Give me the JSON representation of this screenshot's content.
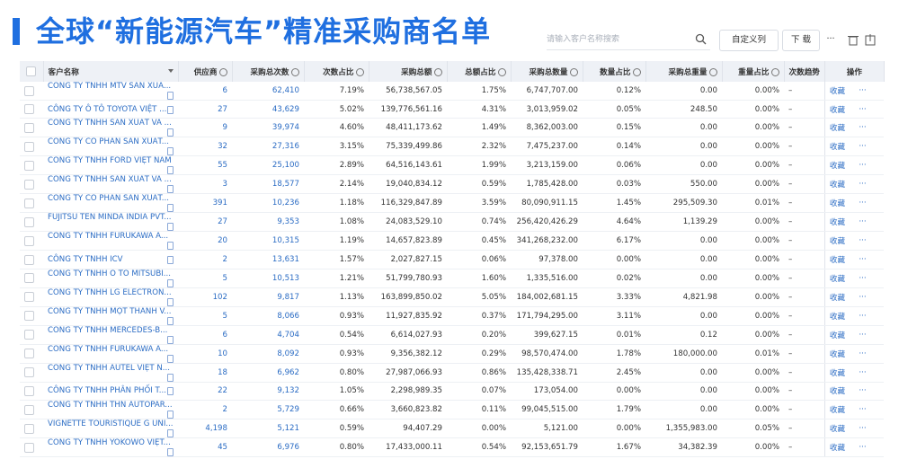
{
  "header": {
    "title": "全球“新能源汽车”精准采购商名单"
  },
  "toolbar": {
    "search_placeholder": "请输入客户名称搜索",
    "buttons": [
      "自定义列",
      "下 载",
      "···"
    ]
  },
  "table": {
    "columns": [
      "客户名称",
      "供应商",
      "采购总次数",
      "次数占比",
      "采购总额",
      "总额占比",
      "采购总数量",
      "数量占比",
      "采购总重量",
      "重量占比",
      "次数趋势",
      "操作"
    ],
    "rows": [
      [
        "CÔNG TY TNHH MTV SẢN XUẤ...",
        "6",
        "62,410",
        "7.19%",
        "56,738,567.05",
        "1.75%",
        "6,747,707.00",
        "0.12%",
        "0.00",
        "0.00%",
        "–",
        "收藏",
        "···"
      ],
      [
        "CÔNG TY Ô TÔ TOYOTA VIỆT ...",
        "27",
        "43,629",
        "5.02%",
        "139,776,561.16",
        "4.31%",
        "3,013,959.02",
        "0.05%",
        "248.50",
        "0.00%",
        "–",
        "收藏",
        "···"
      ],
      [
        "CÔNG TY TNHH SẢN XUẤT VÀ ...",
        "9",
        "39,974",
        "4.60%",
        "48,411,173.62",
        "1.49%",
        "8,362,003.00",
        "0.15%",
        "0.00",
        "0.00%",
        "–",
        "收藏",
        "···"
      ],
      [
        "CÔNG TY CỔ PHẦN SẢN XUẤT...",
        "32",
        "27,316",
        "3.15%",
        "75,339,499.86",
        "2.32%",
        "7,475,237.00",
        "0.14%",
        "0.00",
        "0.00%",
        "–",
        "收藏",
        "···"
      ],
      [
        "CÔNG TY TNHH FORD VIỆT NAM",
        "55",
        "25,100",
        "2.89%",
        "64,516,143.61",
        "1.99%",
        "3,213,159.00",
        "0.06%",
        "0.00",
        "0.00%",
        "–",
        "收藏",
        "···"
      ],
      [
        "CÔNG TY TNHH SẢN XUẤT VÀ ...",
        "3",
        "18,577",
        "2.14%",
        "19,040,834.12",
        "0.59%",
        "1,785,428.00",
        "0.03%",
        "550.00",
        "0.00%",
        "–",
        "收藏",
        "···"
      ],
      [
        "CÔNG TY CỔ PHẦN SẢN XUẤT...",
        "391",
        "10,236",
        "1.18%",
        "116,329,847.89",
        "3.59%",
        "80,090,911.15",
        "1.45%",
        "295,509.30",
        "0.01%",
        "–",
        "收藏",
        "···"
      ],
      [
        "FUJITSU TEN MINDA INDIA PVT...",
        "27",
        "9,353",
        "1.08%",
        "24,083,529.10",
        "0.74%",
        "256,420,426.29",
        "4.64%",
        "1,139.29",
        "0.00%",
        "–",
        "收藏",
        "···"
      ],
      [
        "CÔNG TY TNHH FURUKAWA A...",
        "20",
        "10,315",
        "1.19%",
        "14,657,823.89",
        "0.45%",
        "341,268,232.00",
        "6.17%",
        "0.00",
        "0.00%",
        "–",
        "收藏",
        "···"
      ],
      [
        "CÔNG TY TNHH ICV",
        "2",
        "13,631",
        "1.57%",
        "2,027,827.15",
        "0.06%",
        "97,378.00",
        "0.00%",
        "0.00",
        "0.00%",
        "–",
        "收藏",
        "···"
      ],
      [
        "CÔNG TY TNHH Ô TÔ MITSUBI...",
        "5",
        "10,513",
        "1.21%",
        "51,799,780.93",
        "1.60%",
        "1,335,516.00",
        "0.02%",
        "0.00",
        "0.00%",
        "–",
        "收藏",
        "···"
      ],
      [
        "CÔNG TY TNHH LG ELECTRON...",
        "102",
        "9,817",
        "1.13%",
        "163,899,850.02",
        "5.05%",
        "184,002,681.15",
        "3.33%",
        "4,821.98",
        "0.00%",
        "–",
        "收藏",
        "···"
      ],
      [
        "CÔNG TY TNHH MỘT THÀNH V...",
        "5",
        "8,066",
        "0.93%",
        "11,927,835.92",
        "0.37%",
        "171,794,295.00",
        "3.11%",
        "0.00",
        "0.00%",
        "–",
        "收藏",
        "···"
      ],
      [
        "CÔNG TY TNHH MERCEDES-B...",
        "6",
        "4,704",
        "0.54%",
        "6,614,027.93",
        "0.20%",
        "399,627.15",
        "0.01%",
        "0.12",
        "0.00%",
        "–",
        "收藏",
        "···"
      ],
      [
        "CÔNG TY TNHH FURUKAWA A...",
        "10",
        "8,092",
        "0.93%",
        "9,356,382.12",
        "0.29%",
        "98,570,474.00",
        "1.78%",
        "180,000.00",
        "0.01%",
        "–",
        "收藏",
        "···"
      ],
      [
        "CÔNG TY TNHH AUTEL VIỆT N...",
        "18",
        "6,962",
        "0.80%",
        "27,987,066.93",
        "0.86%",
        "135,428,338.71",
        "2.45%",
        "0.00",
        "0.00%",
        "–",
        "收藏",
        "···"
      ],
      [
        "CÔNG TY TNHH PHÂN PHỐI T...",
        "22",
        "9,132",
        "1.05%",
        "2,298,989.35",
        "0.07%",
        "173,054.00",
        "0.00%",
        "0.00",
        "0.00%",
        "–",
        "收藏",
        "···"
      ],
      [
        "CÔNG TY TNHH THN AUTOPAR...",
        "2",
        "5,729",
        "0.66%",
        "3,660,823.82",
        "0.11%",
        "99,045,515.00",
        "1.79%",
        "0.00",
        "0.00%",
        "–",
        "收藏",
        "···"
      ],
      [
        "VIGNETTE TOURISTIQUE G UNI...",
        "4,198",
        "5,121",
        "0.59%",
        "94,407.29",
        "0.00%",
        "5,121.00",
        "0.00%",
        "1,355,983.00",
        "0.05%",
        "–",
        "收藏",
        "···"
      ],
      [
        "CÔNG TY TNHH YOKOWO VIỆT...",
        "45",
        "6,976",
        "0.80%",
        "17,433,000.11",
        "0.54%",
        "92,153,651.79",
        "1.67%",
        "34,382.39",
        "0.00%",
        "–",
        "收藏",
        "···"
      ]
    ]
  }
}
